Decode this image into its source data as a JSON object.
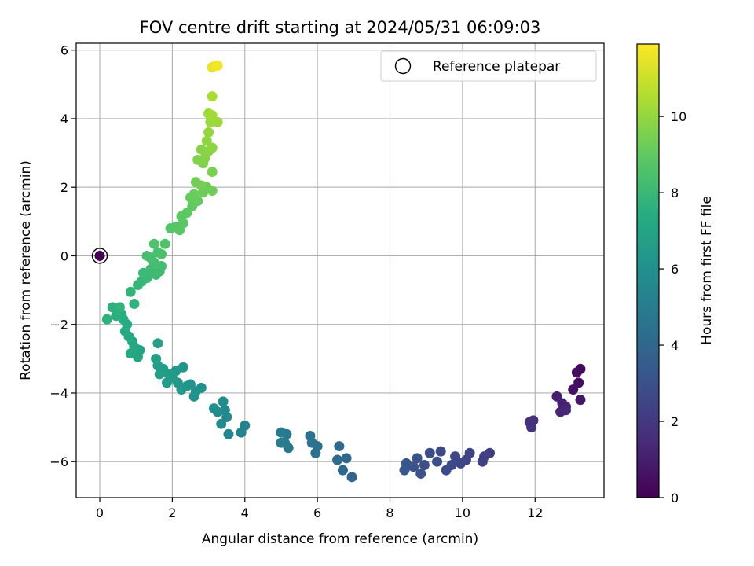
{
  "chart_data": {
    "type": "scatter",
    "title": "FOV centre drift starting at 2024/05/31 06:09:03",
    "xlabel": "Angular distance from reference (arcmin)",
    "ylabel": "Rotation from reference (arcmin)",
    "xlim": [
      -0.65,
      13.9
    ],
    "ylim": [
      -7.05,
      6.2
    ],
    "xticks": [
      0,
      2,
      4,
      6,
      8,
      10,
      12
    ],
    "yticks": [
      -6,
      -4,
      -2,
      0,
      2,
      4,
      6
    ],
    "grid": true,
    "legend": {
      "label": "Reference platepar",
      "position": "top-right"
    },
    "reference_point": {
      "x": 0,
      "y": 0,
      "hours": 0
    },
    "colorbar": {
      "label": "Hours from first FF file",
      "colormap": "viridis",
      "range": [
        0,
        11.9
      ],
      "ticks": [
        0,
        2,
        4,
        6,
        8,
        10
      ]
    },
    "points": [
      {
        "x": 13.25,
        "y": -3.3,
        "h": 0.3
      },
      {
        "x": 13.15,
        "y": -3.4,
        "h": 0.4
      },
      {
        "x": 13.2,
        "y": -3.7,
        "h": 0.5
      },
      {
        "x": 13.05,
        "y": -3.9,
        "h": 0.6
      },
      {
        "x": 13.25,
        "y": -4.2,
        "h": 0.7
      },
      {
        "x": 12.6,
        "y": -4.1,
        "h": 1.0
      },
      {
        "x": 12.75,
        "y": -4.3,
        "h": 1.1
      },
      {
        "x": 12.85,
        "y": -4.4,
        "h": 1.2
      },
      {
        "x": 12.7,
        "y": -4.55,
        "h": 1.3
      },
      {
        "x": 12.85,
        "y": -4.5,
        "h": 1.35
      },
      {
        "x": 11.85,
        "y": -4.85,
        "h": 1.6
      },
      {
        "x": 11.95,
        "y": -4.8,
        "h": 1.7
      },
      {
        "x": 11.9,
        "y": -5.0,
        "h": 1.8
      },
      {
        "x": 10.75,
        "y": -5.75,
        "h": 2.2
      },
      {
        "x": 10.6,
        "y": -5.85,
        "h": 2.3
      },
      {
        "x": 10.55,
        "y": -6.0,
        "h": 2.35
      },
      {
        "x": 10.2,
        "y": -5.75,
        "h": 2.4
      },
      {
        "x": 10.1,
        "y": -5.95,
        "h": 2.45
      },
      {
        "x": 9.95,
        "y": -6.05,
        "h": 2.55
      },
      {
        "x": 9.8,
        "y": -5.85,
        "h": 2.6
      },
      {
        "x": 9.7,
        "y": -6.1,
        "h": 2.65
      },
      {
        "x": 9.55,
        "y": -6.25,
        "h": 2.7
      },
      {
        "x": 9.4,
        "y": -5.7,
        "h": 2.75
      },
      {
        "x": 9.3,
        "y": -6.0,
        "h": 2.8
      },
      {
        "x": 9.1,
        "y": -5.75,
        "h": 2.85
      },
      {
        "x": 8.95,
        "y": -6.1,
        "h": 2.9
      },
      {
        "x": 8.85,
        "y": -6.35,
        "h": 3.0
      },
      {
        "x": 8.75,
        "y": -5.9,
        "h": 3.05
      },
      {
        "x": 8.65,
        "y": -6.15,
        "h": 3.1
      },
      {
        "x": 8.45,
        "y": -6.05,
        "h": 3.2
      },
      {
        "x": 8.4,
        "y": -6.25,
        "h": 3.25
      },
      {
        "x": 6.95,
        "y": -6.45,
        "h": 3.9
      },
      {
        "x": 6.8,
        "y": -5.9,
        "h": 4.0
      },
      {
        "x": 6.7,
        "y": -6.25,
        "h": 4.05
      },
      {
        "x": 6.6,
        "y": -5.55,
        "h": 4.1
      },
      {
        "x": 6.55,
        "y": -5.95,
        "h": 4.15
      },
      {
        "x": 6.0,
        "y": -5.55,
        "h": 4.4
      },
      {
        "x": 5.95,
        "y": -5.75,
        "h": 4.45
      },
      {
        "x": 5.8,
        "y": -5.25,
        "h": 4.5
      },
      {
        "x": 5.85,
        "y": -5.45,
        "h": 4.55
      },
      {
        "x": 5.2,
        "y": -5.6,
        "h": 4.8
      },
      {
        "x": 5.15,
        "y": -5.2,
        "h": 4.85
      },
      {
        "x": 5.1,
        "y": -5.45,
        "h": 4.9
      },
      {
        "x": 5.0,
        "y": -5.15,
        "h": 4.95
      },
      {
        "x": 5.0,
        "y": -5.45,
        "h": 5.0
      },
      {
        "x": 4.0,
        "y": -4.95,
        "h": 5.3
      },
      {
        "x": 3.9,
        "y": -5.15,
        "h": 5.35
      },
      {
        "x": 3.55,
        "y": -5.2,
        "h": 5.5
      },
      {
        "x": 3.5,
        "y": -4.7,
        "h": 5.55
      },
      {
        "x": 3.45,
        "y": -4.5,
        "h": 5.6
      },
      {
        "x": 3.4,
        "y": -4.25,
        "h": 5.65
      },
      {
        "x": 3.35,
        "y": -4.9,
        "h": 5.7
      },
      {
        "x": 3.25,
        "y": -4.55,
        "h": 5.75
      },
      {
        "x": 3.15,
        "y": -4.45,
        "h": 5.8
      },
      {
        "x": 2.8,
        "y": -3.85,
        "h": 6.0
      },
      {
        "x": 2.65,
        "y": -3.95,
        "h": 6.05
      },
      {
        "x": 2.6,
        "y": -4.1,
        "h": 6.1
      },
      {
        "x": 2.5,
        "y": -3.75,
        "h": 6.15
      },
      {
        "x": 2.4,
        "y": -3.8,
        "h": 6.2
      },
      {
        "x": 2.3,
        "y": -3.25,
        "h": 6.25
      },
      {
        "x": 2.25,
        "y": -3.9,
        "h": 6.3
      },
      {
        "x": 2.15,
        "y": -3.7,
        "h": 6.35
      },
      {
        "x": 2.1,
        "y": -3.35,
        "h": 6.4
      },
      {
        "x": 2.0,
        "y": -3.55,
        "h": 6.45
      },
      {
        "x": 1.9,
        "y": -3.45,
        "h": 6.5
      },
      {
        "x": 1.85,
        "y": -3.7,
        "h": 6.55
      },
      {
        "x": 1.75,
        "y": -3.3,
        "h": 6.6
      },
      {
        "x": 1.65,
        "y": -3.45,
        "h": 6.65
      },
      {
        "x": 1.6,
        "y": -3.2,
        "h": 6.7
      },
      {
        "x": 1.55,
        "y": -3.0,
        "h": 6.75
      },
      {
        "x": 1.6,
        "y": -2.55,
        "h": 6.8
      },
      {
        "x": 1.1,
        "y": -2.75,
        "h": 7.0
      },
      {
        "x": 1.05,
        "y": -2.95,
        "h": 7.05
      },
      {
        "x": 0.95,
        "y": -2.65,
        "h": 7.1
      },
      {
        "x": 0.9,
        "y": -2.5,
        "h": 7.15
      },
      {
        "x": 0.85,
        "y": -2.85,
        "h": 7.2
      },
      {
        "x": 0.8,
        "y": -2.35,
        "h": 7.25
      },
      {
        "x": 0.7,
        "y": -2.2,
        "h": 7.3
      },
      {
        "x": 0.75,
        "y": -2.0,
        "h": 7.35
      },
      {
        "x": 0.65,
        "y": -1.85,
        "h": 7.4
      },
      {
        "x": 0.6,
        "y": -1.7,
        "h": 7.45
      },
      {
        "x": 0.5,
        "y": -1.6,
        "h": 7.5
      },
      {
        "x": 0.45,
        "y": -1.75,
        "h": 7.55
      },
      {
        "x": 0.35,
        "y": -1.5,
        "h": 7.6
      },
      {
        "x": 0.2,
        "y": -1.85,
        "h": 7.65
      },
      {
        "x": 0.55,
        "y": -1.5,
        "h": 7.7
      },
      {
        "x": 0.95,
        "y": -1.4,
        "h": 7.75
      },
      {
        "x": 0.85,
        "y": -1.05,
        "h": 7.8
      },
      {
        "x": 1.05,
        "y": -0.85,
        "h": 7.9
      },
      {
        "x": 1.15,
        "y": -0.75,
        "h": 7.95
      },
      {
        "x": 1.3,
        "y": -0.65,
        "h": 8.0
      },
      {
        "x": 1.2,
        "y": -0.5,
        "h": 8.05
      },
      {
        "x": 1.4,
        "y": -0.4,
        "h": 8.1
      },
      {
        "x": 1.55,
        "y": -0.55,
        "h": 8.15
      },
      {
        "x": 1.65,
        "y": -0.45,
        "h": 8.2
      },
      {
        "x": 1.7,
        "y": -0.3,
        "h": 8.25
      },
      {
        "x": 1.5,
        "y": -0.2,
        "h": 8.3
      },
      {
        "x": 1.4,
        "y": -0.05,
        "h": 8.35
      },
      {
        "x": 1.3,
        "y": 0.0,
        "h": 8.4
      },
      {
        "x": 1.6,
        "y": 0.1,
        "h": 8.45
      },
      {
        "x": 1.7,
        "y": 0.05,
        "h": 8.5
      },
      {
        "x": 1.5,
        "y": 0.35,
        "h": 8.55
      },
      {
        "x": 1.8,
        "y": 0.35,
        "h": 8.6
      },
      {
        "x": 1.95,
        "y": 0.8,
        "h": 8.7
      },
      {
        "x": 2.1,
        "y": 0.85,
        "h": 8.75
      },
      {
        "x": 2.2,
        "y": 0.75,
        "h": 8.8
      },
      {
        "x": 2.3,
        "y": 0.95,
        "h": 8.85
      },
      {
        "x": 2.25,
        "y": 1.15,
        "h": 8.9
      },
      {
        "x": 2.4,
        "y": 1.25,
        "h": 8.95
      },
      {
        "x": 2.55,
        "y": 1.45,
        "h": 9.0
      },
      {
        "x": 2.5,
        "y": 1.7,
        "h": 9.05
      },
      {
        "x": 2.7,
        "y": 1.6,
        "h": 9.1
      },
      {
        "x": 2.6,
        "y": 1.8,
        "h": 9.15
      },
      {
        "x": 2.85,
        "y": 1.85,
        "h": 9.2
      },
      {
        "x": 2.95,
        "y": 2.0,
        "h": 9.25
      },
      {
        "x": 3.1,
        "y": 1.9,
        "h": 9.3
      },
      {
        "x": 2.65,
        "y": 2.15,
        "h": 9.35
      },
      {
        "x": 2.8,
        "y": 2.05,
        "h": 9.4
      },
      {
        "x": 3.1,
        "y": 2.45,
        "h": 9.5
      },
      {
        "x": 2.85,
        "y": 2.7,
        "h": 9.6
      },
      {
        "x": 2.7,
        "y": 2.8,
        "h": 9.65
      },
      {
        "x": 2.9,
        "y": 2.85,
        "h": 9.7
      },
      {
        "x": 2.8,
        "y": 3.1,
        "h": 9.75
      },
      {
        "x": 3.0,
        "y": 3.05,
        "h": 9.8
      },
      {
        "x": 3.1,
        "y": 3.15,
        "h": 9.85
      },
      {
        "x": 2.95,
        "y": 3.35,
        "h": 9.9
      },
      {
        "x": 3.0,
        "y": 3.6,
        "h": 10.0
      },
      {
        "x": 3.05,
        "y": 3.9,
        "h": 10.1
      },
      {
        "x": 3.25,
        "y": 3.9,
        "h": 10.15
      },
      {
        "x": 3.0,
        "y": 4.15,
        "h": 10.2
      },
      {
        "x": 3.1,
        "y": 4.1,
        "h": 10.25
      },
      {
        "x": 3.1,
        "y": 4.65,
        "h": 10.4
      },
      {
        "x": 3.1,
        "y": 5.5,
        "h": 11.5
      },
      {
        "x": 3.2,
        "y": 5.55,
        "h": 11.6
      },
      {
        "x": 3.25,
        "y": 5.55,
        "h": 11.7
      }
    ]
  }
}
